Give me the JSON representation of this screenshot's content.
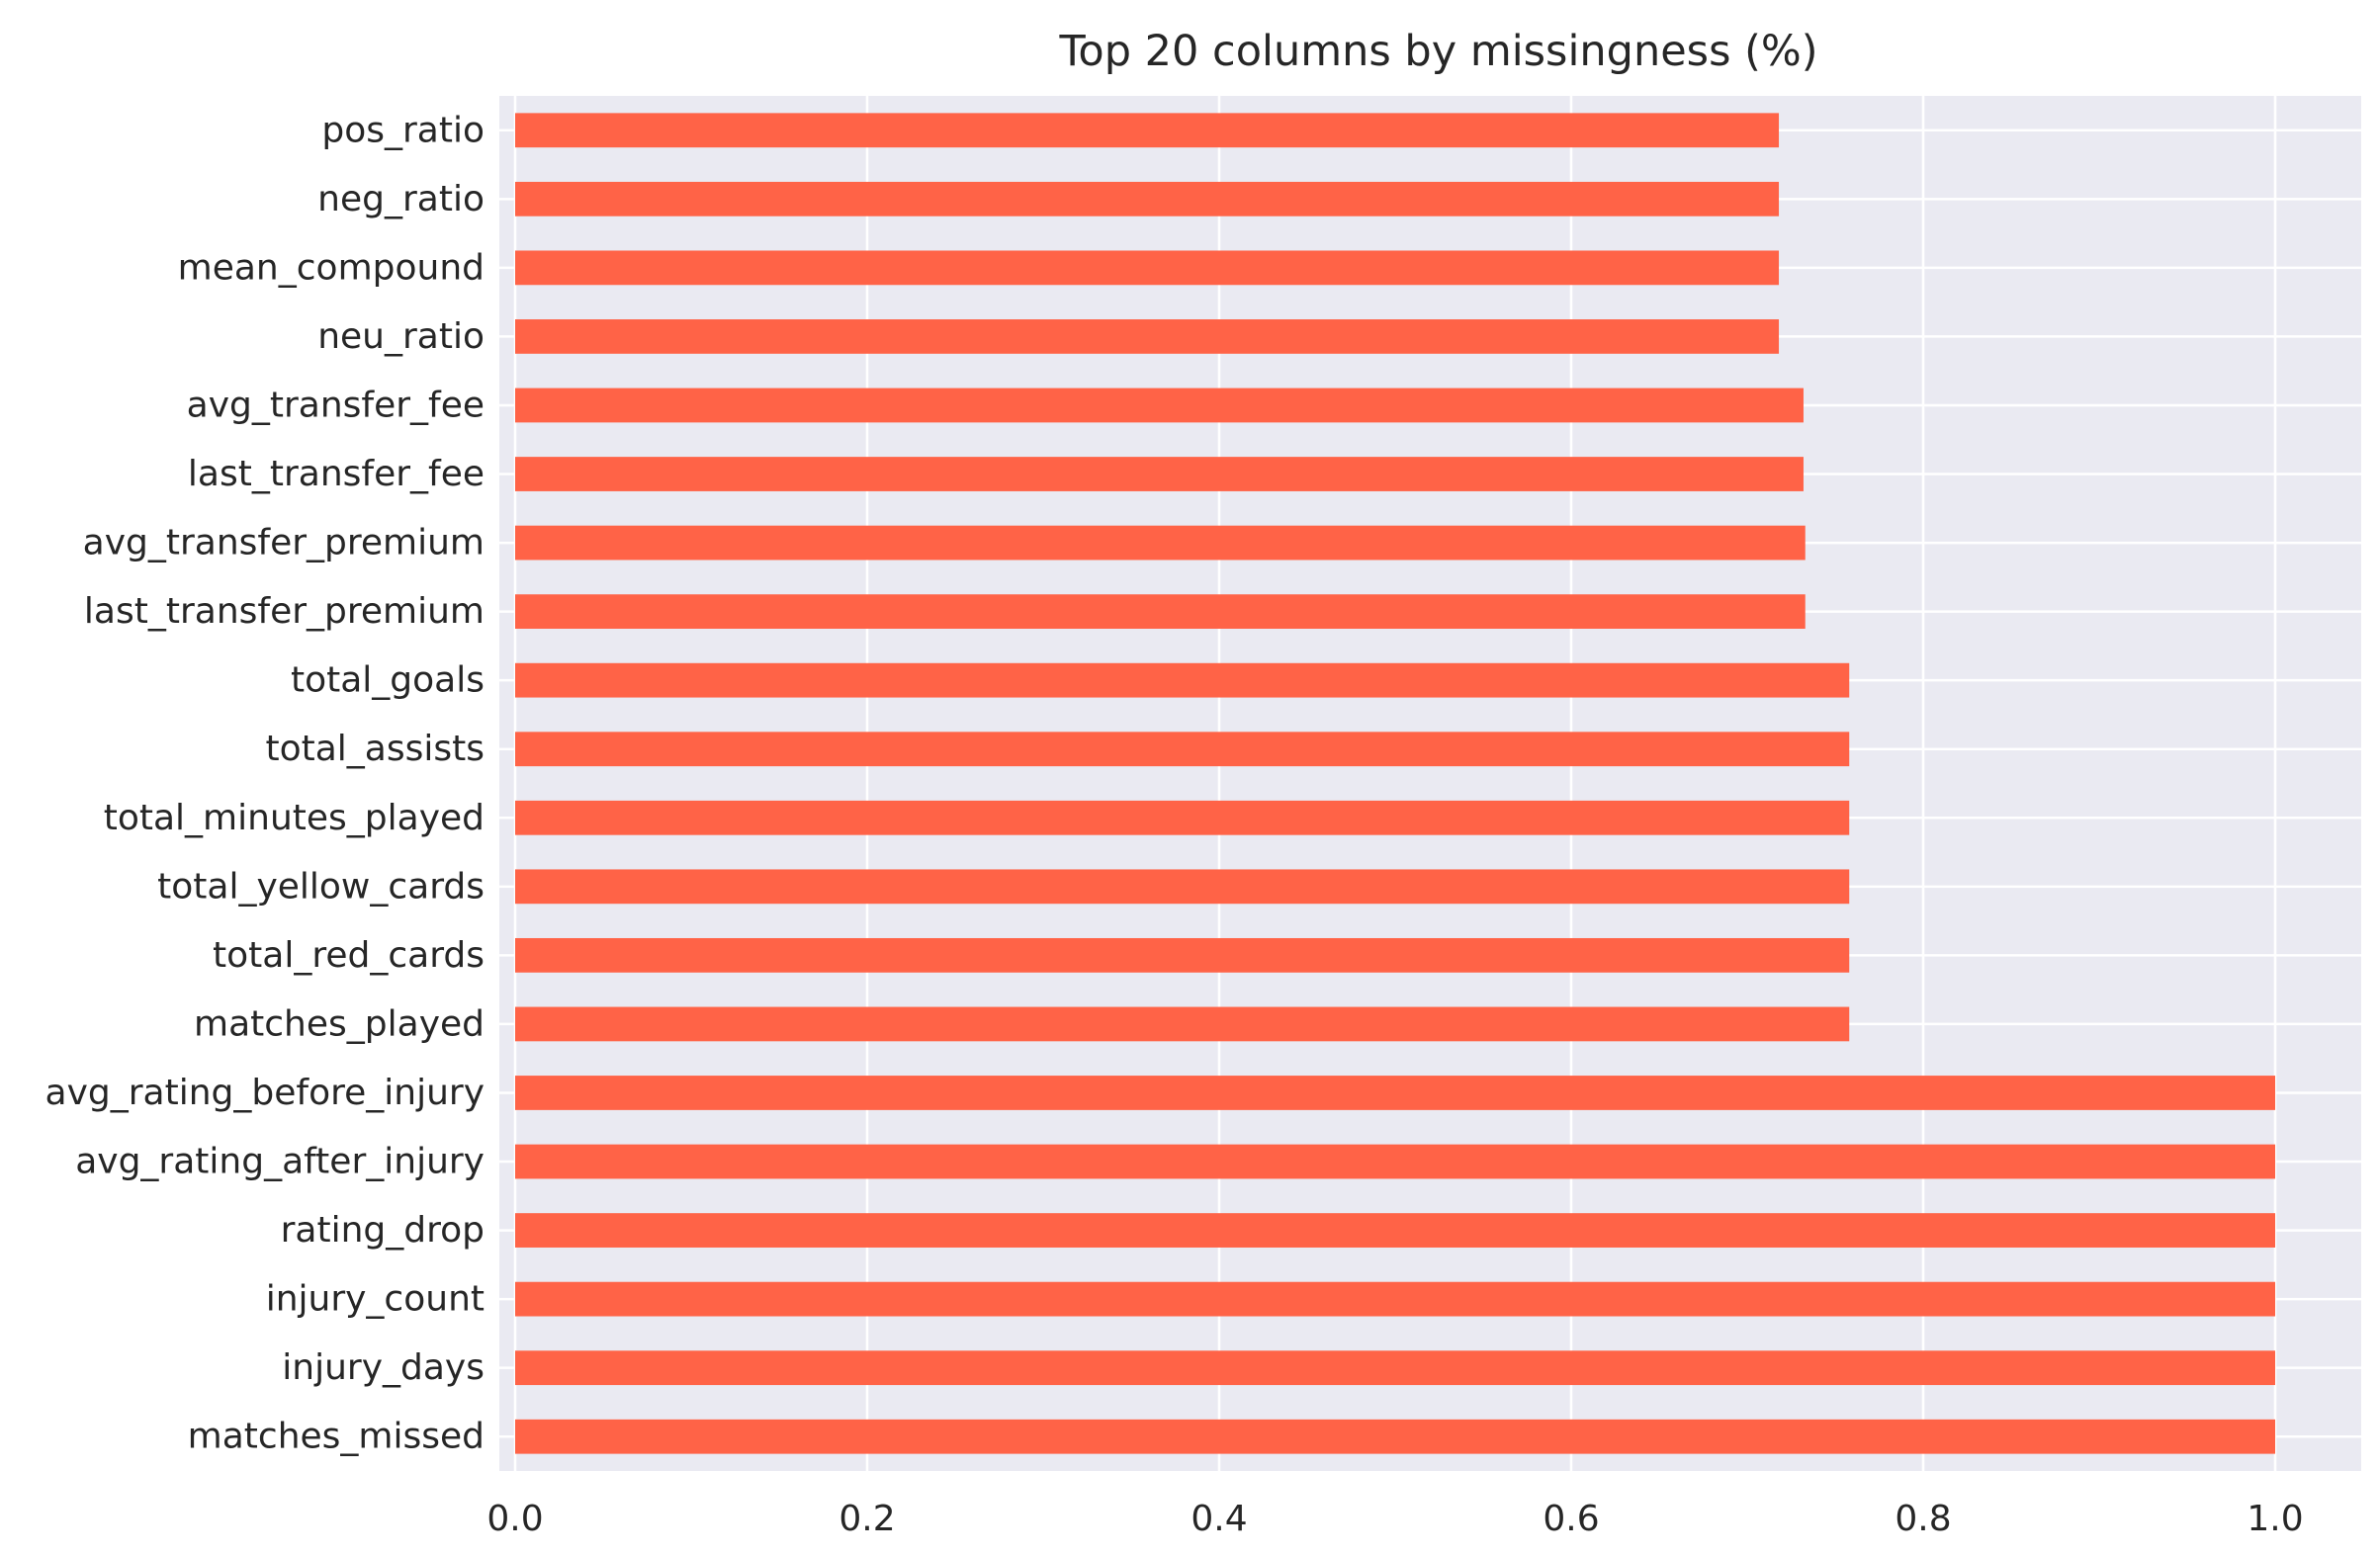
{
  "chart_data": {
    "type": "bar",
    "orientation": "horizontal",
    "title": "Top 20 columns by missingness (%)",
    "xlabel": "",
    "ylabel": "",
    "xlim": [
      0,
      1.05
    ],
    "xticks": [
      "0.0",
      "0.2",
      "0.4",
      "0.6",
      "0.8",
      "1.0"
    ],
    "grid": true,
    "bar_color": "#ff6347",
    "background_color": "#eaeaf2",
    "grid_color": "#ffffff",
    "categories": [
      "pos_ratio",
      "neg_ratio",
      "mean_compound",
      "neu_ratio",
      "avg_transfer_fee",
      "last_transfer_fee",
      "avg_transfer_premium",
      "last_transfer_premium",
      "total_goals",
      "total_assists",
      "total_minutes_played",
      "total_yellow_cards",
      "total_red_cards",
      "matches_played",
      "avg_rating_before_injury",
      "avg_rating_after_injury",
      "rating_drop",
      "injury_count",
      "injury_days",
      "matches_missed"
    ],
    "values": [
      0.718,
      0.718,
      0.718,
      0.718,
      0.732,
      0.732,
      0.733,
      0.733,
      0.758,
      0.758,
      0.758,
      0.758,
      0.758,
      0.758,
      1.0,
      1.0,
      1.0,
      1.0,
      1.0,
      1.0
    ]
  }
}
